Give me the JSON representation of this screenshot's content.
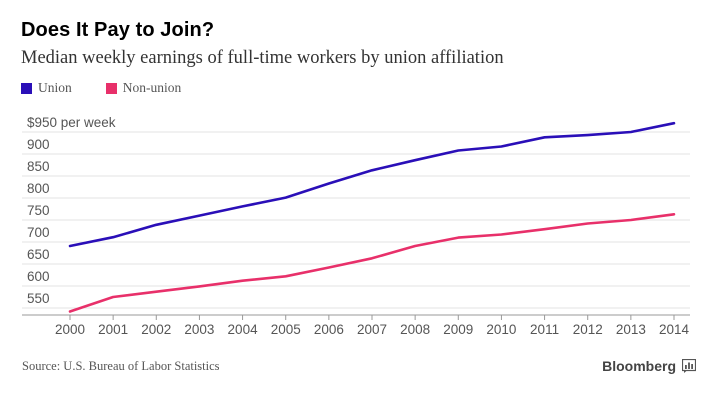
{
  "header": {
    "title": "Does It Pay to Join?",
    "subtitle": "Median weekly earnings of full-time workers by union affiliation"
  },
  "footer": {
    "source": "Source: U.S. Bureau of Labor Statistics",
    "brand": "Bloomberg"
  },
  "colors": {
    "union": "#2a0fb8",
    "non_union": "#e8306a",
    "grid": "#e3e3e3"
  },
  "chart_data": {
    "type": "line",
    "title": "Does It Pay to Join?",
    "subtitle": "Median weekly earnings of full-time workers by union affiliation",
    "xlabel": "",
    "ylabel": "$950 per week",
    "x": [
      2000,
      2001,
      2002,
      2003,
      2004,
      2005,
      2006,
      2007,
      2008,
      2009,
      2010,
      2011,
      2012,
      2013,
      2014
    ],
    "ylim": [
      540,
      975
    ],
    "yticks": [
      550,
      600,
      650,
      700,
      750,
      800,
      850,
      900,
      950
    ],
    "ytick_labels": [
      "550",
      "600",
      "650",
      "700",
      "750",
      "800",
      "850",
      "900",
      "$950 per week"
    ],
    "grid": true,
    "legend": "top-left",
    "series": [
      {
        "name": "Union",
        "color": "#2a0fb8",
        "values": [
          691,
          711,
          739,
          760,
          781,
          801,
          833,
          863,
          886,
          908,
          917,
          938,
          943,
          950,
          970
        ]
      },
      {
        "name": "Non-union",
        "color": "#e8306a",
        "values": [
          542,
          575,
          587,
          599,
          612,
          622,
          642,
          663,
          691,
          710,
          717,
          729,
          742,
          750,
          763
        ]
      }
    ]
  }
}
